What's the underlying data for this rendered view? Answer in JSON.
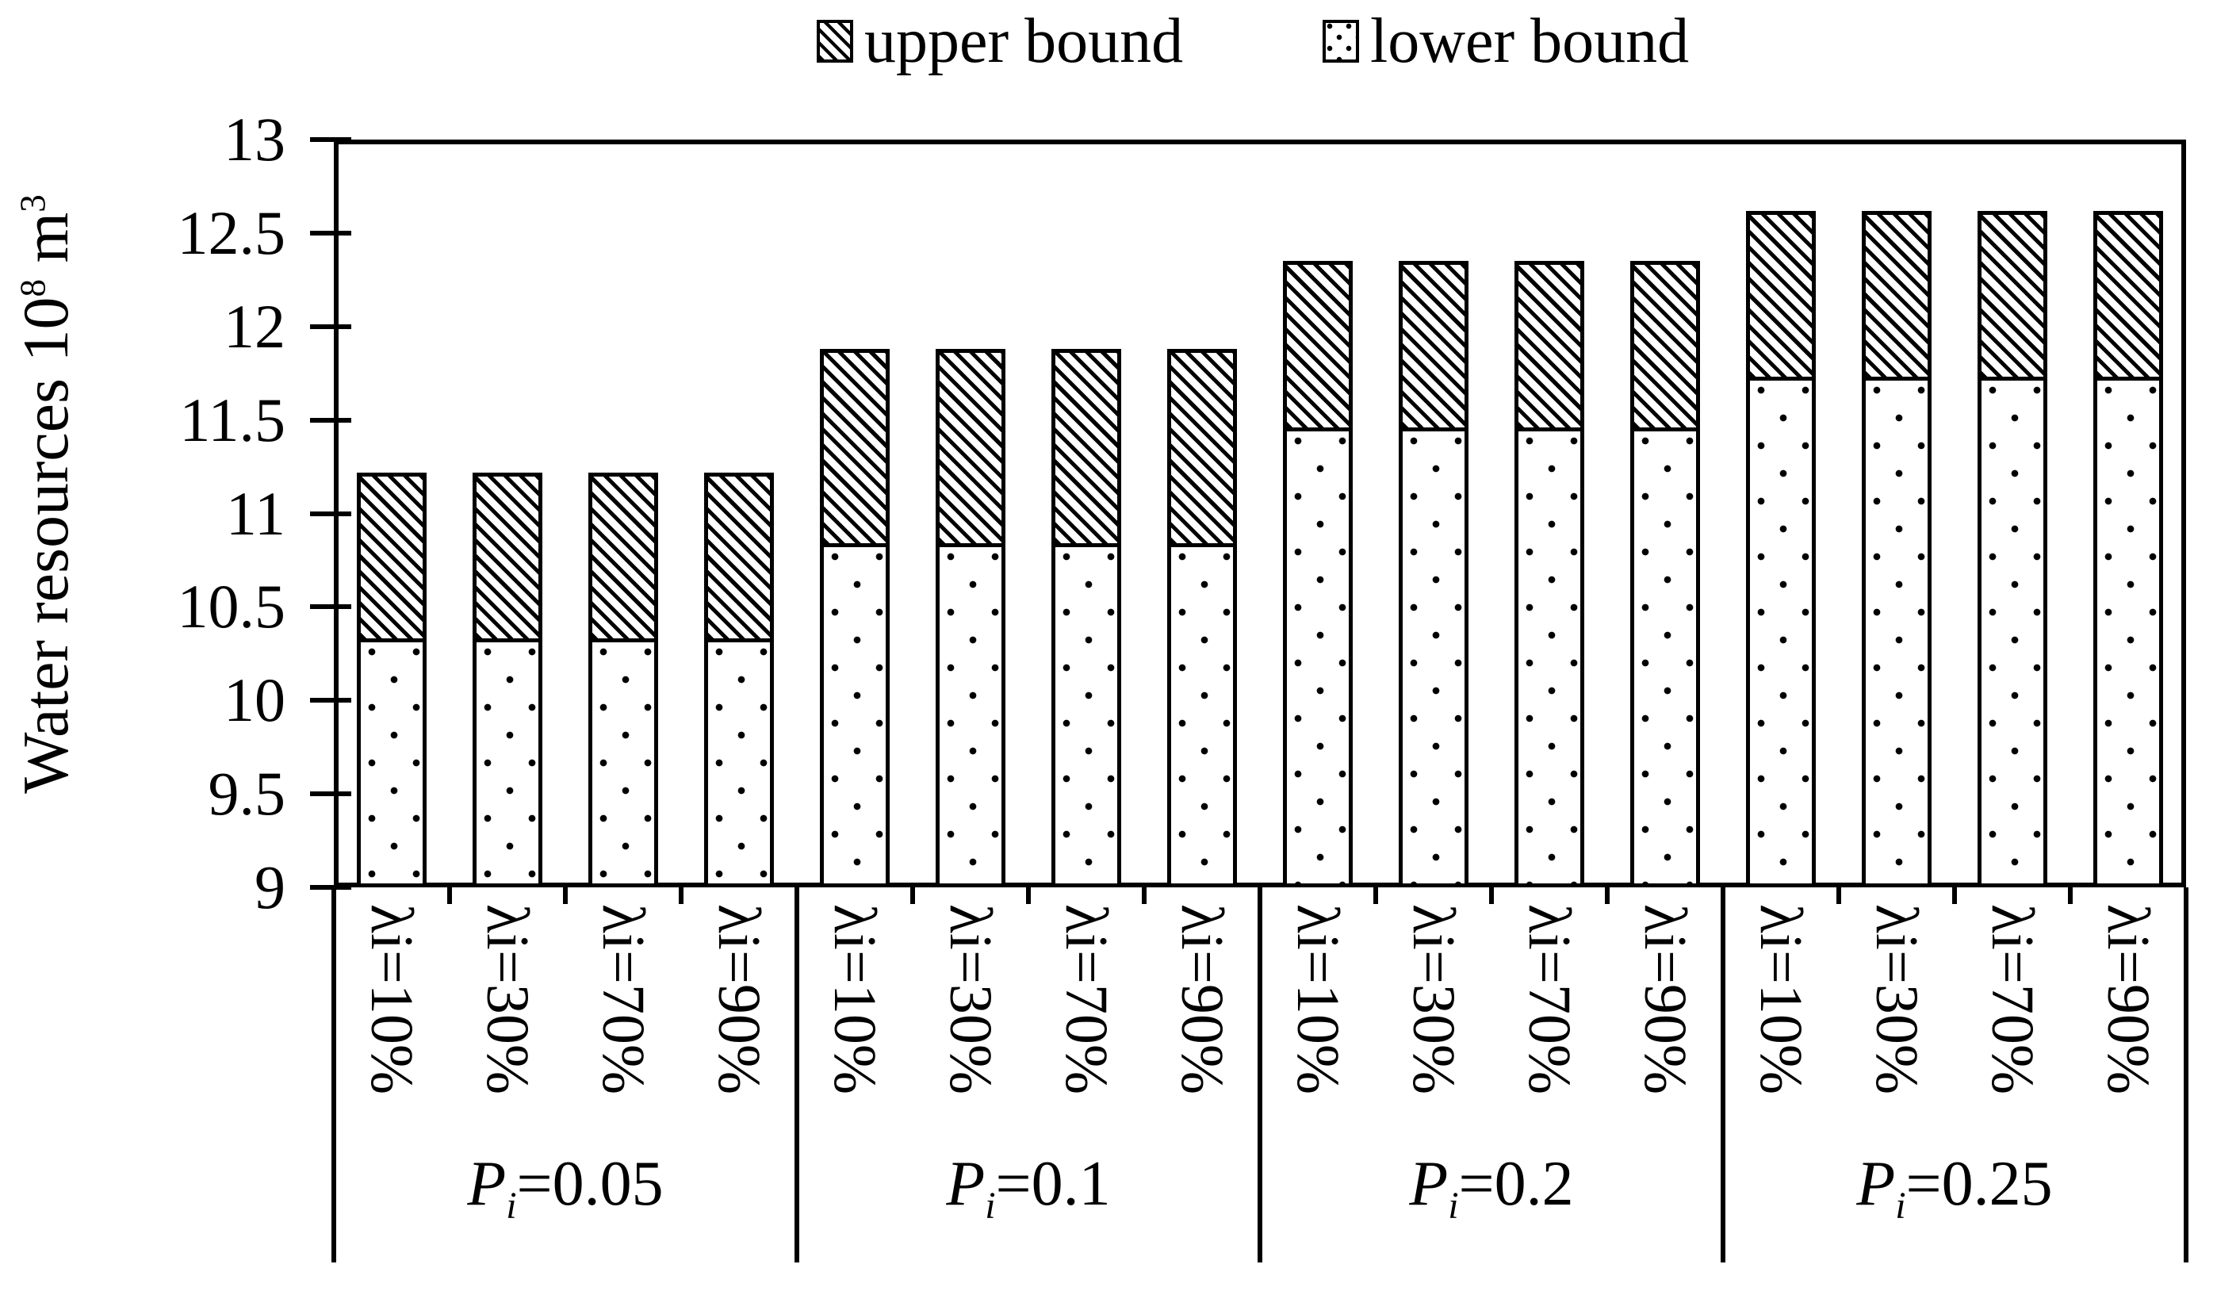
{
  "figure": {
    "background": "#ffffff",
    "ink": "#000000"
  },
  "legend": {
    "position": "top-center",
    "items": [
      {
        "label": "upper bound",
        "pattern": "diagonal-hatch"
      },
      {
        "label": "lower bound",
        "pattern": "dots"
      }
    ]
  },
  "y_axis": {
    "label": {
      "text1": "Water resources 10",
      "sup1": "8",
      "text2": " m",
      "sup2": "3"
    },
    "min": 9,
    "max": 13,
    "ticks": [
      {
        "value": 9,
        "label": "9"
      },
      {
        "value": 9.5,
        "label": "9.5"
      },
      {
        "value": 10,
        "label": "10"
      },
      {
        "value": 10.5,
        "label": "10.5"
      },
      {
        "value": 11,
        "label": "11"
      },
      {
        "value": 11.5,
        "label": "11.5"
      },
      {
        "value": 12,
        "label": "12"
      },
      {
        "value": 12.5,
        "label": "12.5"
      },
      {
        "value": 13,
        "label": "13"
      }
    ]
  },
  "chart_data": {
    "type": "bar",
    "subtype": "stacked-interval",
    "title": "",
    "ylabel": "Water resources 10^8 m^3",
    "xlabel": "",
    "ylim": [
      9,
      13
    ],
    "ytick_step": 0.5,
    "grid": false,
    "legend_position": "top",
    "series": [
      {
        "name": "upper bound",
        "pattern": "diagonal-hatch"
      },
      {
        "name": "lower bound",
        "pattern": "dots"
      }
    ],
    "groups": [
      {
        "label": "Pi=0.05",
        "label_parts": {
          "symbol": "P",
          "sub": "i",
          "value": "=0.05"
        },
        "bars": [
          {
            "lambda": "λi=10%",
            "lower_bound": 10.31,
            "upper_bound": 11.22
          },
          {
            "lambda": "λi=30%",
            "lower_bound": 10.31,
            "upper_bound": 11.22
          },
          {
            "lambda": "λi=70%",
            "lower_bound": 10.31,
            "upper_bound": 11.22
          },
          {
            "lambda": "λi=90%",
            "lower_bound": 10.31,
            "upper_bound": 11.22
          }
        ]
      },
      {
        "label": "Pi=0.1",
        "label_parts": {
          "symbol": "P",
          "sub": "i",
          "value": "=0.1"
        },
        "bars": [
          {
            "lambda": "λi=10%",
            "lower_bound": 10.82,
            "upper_bound": 11.88
          },
          {
            "lambda": "λi=30%",
            "lower_bound": 10.82,
            "upper_bound": 11.88
          },
          {
            "lambda": "λi=70%",
            "lower_bound": 10.82,
            "upper_bound": 11.88
          },
          {
            "lambda": "λi=90%",
            "lower_bound": 10.82,
            "upper_bound": 11.88
          }
        ]
      },
      {
        "label": "Pi=0.2",
        "label_parts": {
          "symbol": "P",
          "sub": "i",
          "value": "=0.2"
        },
        "bars": [
          {
            "lambda": "λi=10%",
            "lower_bound": 11.44,
            "upper_bound": 12.35
          },
          {
            "lambda": "λi=30%",
            "lower_bound": 11.44,
            "upper_bound": 12.35
          },
          {
            "lambda": "λi=70%",
            "lower_bound": 11.44,
            "upper_bound": 12.35
          },
          {
            "lambda": "λi=90%",
            "lower_bound": 11.44,
            "upper_bound": 12.35
          }
        ]
      },
      {
        "label": "Pi=0.25",
        "label_parts": {
          "symbol": "P",
          "sub": "i",
          "value": "=0.25"
        },
        "bars": [
          {
            "lambda": "λi=10%",
            "lower_bound": 11.71,
            "upper_bound": 12.62
          },
          {
            "lambda": "λi=30%",
            "lower_bound": 11.71,
            "upper_bound": 12.62
          },
          {
            "lambda": "λi=70%",
            "lower_bound": 11.71,
            "upper_bound": 12.62
          },
          {
            "lambda": "λi=90%",
            "lower_bound": 11.71,
            "upper_bound": 12.62
          }
        ]
      }
    ]
  }
}
